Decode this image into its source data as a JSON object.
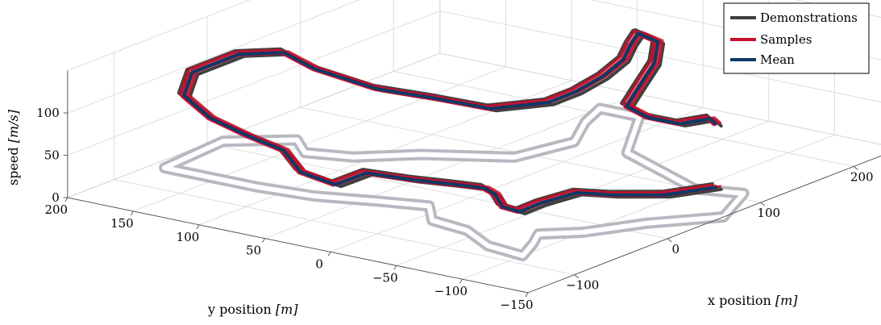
{
  "chart_data": {
    "type": "line3d",
    "xlabel": "x position [m]",
    "ylabel": "y position [m]",
    "zlabel": "speed [m/s]",
    "x_ticks": [
      -100,
      0,
      100,
      200
    ],
    "y_ticks": [
      -150,
      -100,
      -50,
      0,
      50,
      100,
      150,
      200
    ],
    "z_ticks": [
      0,
      50,
      100
    ],
    "xlim": [
      -150,
      250
    ],
    "ylim": [
      -150,
      200
    ],
    "zlim": [
      0,
      150
    ],
    "grid": true,
    "legend": {
      "position": "top-right",
      "entries": [
        "Demonstrations",
        "Samples",
        "Mean"
      ]
    },
    "colors": {
      "Demonstrations": "#404040",
      "Samples": "#c8102e",
      "Mean": "#0b3a66",
      "track": "#b8b8c0"
    },
    "track_outline": [
      [
        -60,
        150
      ],
      [
        -60,
        190
      ],
      [
        10,
        195
      ],
      [
        40,
        160
      ],
      [
        20,
        140
      ],
      [
        30,
        110
      ],
      [
        60,
        80
      ],
      [
        90,
        30
      ],
      [
        140,
        20
      ],
      [
        180,
        40
      ],
      [
        210,
        50
      ],
      [
        210,
        20
      ],
      [
        140,
        -20
      ],
      [
        120,
        -60
      ],
      [
        100,
        -100
      ],
      [
        110,
        -130
      ],
      [
        60,
        -150
      ],
      [
        20,
        -120
      ],
      [
        -20,
        -100
      ],
      [
        -40,
        -80
      ],
      [
        -60,
        -90
      ],
      [
        -85,
        -100
      ],
      [
        -80,
        -70
      ],
      [
        -60,
        -40
      ],
      [
        -55,
        -10
      ],
      [
        -30,
        10
      ],
      [
        -40,
        40
      ],
      [
        -55,
        80
      ],
      [
        -60,
        120
      ],
      [
        -60,
        150
      ]
    ],
    "series": [
      {
        "name": "Mean",
        "points": [
          [
            80,
            -130,
            20
          ],
          [
            40,
            -120,
            25
          ],
          [
            5,
            -105,
            35
          ],
          [
            -20,
            -95,
            45
          ],
          [
            -45,
            -85,
            40
          ],
          [
            -60,
            -80,
            35
          ],
          [
            -50,
            -60,
            30
          ],
          [
            -30,
            -40,
            30
          ],
          [
            -20,
            -25,
            28
          ],
          [
            -15,
            0,
            22
          ],
          [
            -35,
            20,
            30
          ],
          [
            -55,
            40,
            40
          ],
          [
            -60,
            60,
            22
          ],
          [
            -55,
            90,
            25
          ],
          [
            -45,
            110,
            40
          ],
          [
            -55,
            130,
            55
          ],
          [
            -60,
            155,
            70
          ],
          [
            -60,
            175,
            90
          ],
          [
            -30,
            190,
            100
          ],
          [
            20,
            190,
            100
          ],
          [
            40,
            170,
            100
          ],
          [
            45,
            150,
            85
          ],
          [
            55,
            110,
            70
          ],
          [
            75,
            80,
            60
          ],
          [
            100,
            55,
            45
          ],
          [
            140,
            40,
            40
          ],
          [
            170,
            40,
            40
          ],
          [
            185,
            30,
            55
          ],
          [
            200,
            25,
            70
          ],
          [
            215,
            30,
            80
          ],
          [
            230,
            35,
            85
          ],
          [
            230,
            20,
            80
          ],
          [
            205,
            5,
            70
          ],
          [
            165,
            -10,
            60
          ],
          [
            140,
            -20,
            55
          ],
          [
            120,
            -50,
            60
          ],
          [
            105,
            -85,
            70
          ],
          [
            95,
            -115,
            90
          ],
          [
            80,
            -130,
            95
          ]
        ]
      }
    ]
  }
}
